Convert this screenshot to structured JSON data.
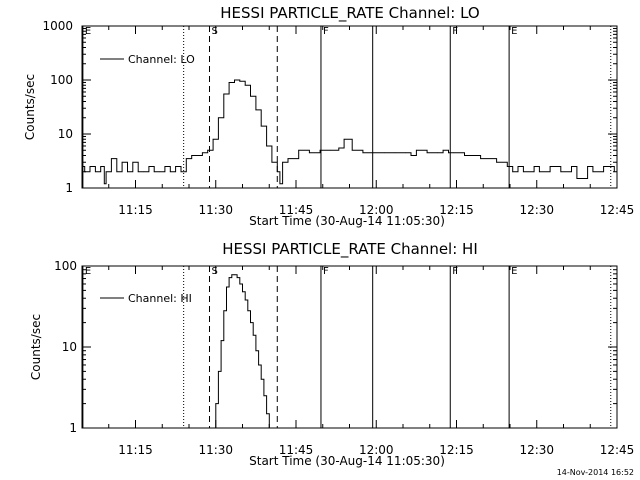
{
  "chart_data": [
    {
      "type": "line",
      "title": "HESSI PARTICLE_RATE Channel: LO",
      "xlabel": "Start Time (30-Aug-14 11:05:30)",
      "ylabel": "Counts/sec",
      "y_scale": "log",
      "ylim": [
        1,
        1000
      ],
      "xlim": [
        "11:05:30",
        "12:45:30"
      ],
      "x_ticks": [
        "11:15",
        "11:30",
        "11:45",
        "12:00",
        "12:15",
        "12:30",
        "12:45"
      ],
      "y_ticks": [
        "1",
        "10",
        "100",
        "1000"
      ],
      "legend": {
        "position": "top-left",
        "entries": [
          "Channel: LO"
        ]
      },
      "markers": [
        {
          "label": "E",
          "time": "11:05:40",
          "style": "solid"
        },
        {
          "label": "",
          "time": "11:24:30",
          "style": "dotted"
        },
        {
          "label": "S",
          "time": "11:29:20",
          "style": "dashed"
        },
        {
          "label": "",
          "time": "11:42:00",
          "style": "dashed"
        },
        {
          "label": "F",
          "time": "11:50:10",
          "style": "solid"
        },
        {
          "label": "",
          "time": "11:59:50",
          "style": "solid"
        },
        {
          "label": "F",
          "time": "12:14:20",
          "style": "solid"
        },
        {
          "label": "E",
          "time": "12:25:20",
          "style": "solid"
        },
        {
          "label": "",
          "time": "12:44:20",
          "style": "dotted"
        }
      ],
      "series": [
        {
          "name": "Channel: LO",
          "x": [
            "11:05:30",
            "11:06:00",
            "11:07:00",
            "11:08:00",
            "11:09:00",
            "11:09:40",
            "11:10:00",
            "11:11:00",
            "11:12:00",
            "11:13:00",
            "11:14:00",
            "11:15:00",
            "11:16:00",
            "11:17:00",
            "11:18:00",
            "11:19:00",
            "11:20:00",
            "11:21:00",
            "11:22:00",
            "11:23:00",
            "11:24:00",
            "11:25:00",
            "11:26:00",
            "11:27:00",
            "11:28:00",
            "11:29:00",
            "11:30:00",
            "11:31:00",
            "11:32:00",
            "11:33:00",
            "11:34:00",
            "11:35:00",
            "11:36:00",
            "11:37:00",
            "11:38:00",
            "11:39:00",
            "11:40:00",
            "11:41:00",
            "11:42:00",
            "11:42:30",
            "11:43:00",
            "11:44:00",
            "11:46:00",
            "11:48:00",
            "11:50:00",
            "11:52:00",
            "11:53:30",
            "11:54:30",
            "11:56:00",
            "11:58:00",
            "12:00:00",
            "12:02:00",
            "12:04:00",
            "12:06:00",
            "12:07:00",
            "12:08:00",
            "12:10:00",
            "12:12:00",
            "12:13:00",
            "12:14:00",
            "12:15:00",
            "12:17:00",
            "12:20:00",
            "12:23:00",
            "12:25:00",
            "12:26:00",
            "12:27:00",
            "12:28:00",
            "12:30:00",
            "12:31:00",
            "12:33:00",
            "12:35:00",
            "12:37:00",
            "12:38:00",
            "12:40:00",
            "12:41:00",
            "12:43:00",
            "12:45:00"
          ],
          "y": [
            2.5,
            2.0,
            2.5,
            2.0,
            2.5,
            1.2,
            2.0,
            3.5,
            2.0,
            3.0,
            2.0,
            3.0,
            2.0,
            2.0,
            2.5,
            2.0,
            2.0,
            2.5,
            2.0,
            2.5,
            2.0,
            3.5,
            4.0,
            4.0,
            4.5,
            5.0,
            8.0,
            20,
            55,
            90,
            100,
            95,
            80,
            50,
            28,
            14,
            6,
            3,
            2,
            1.2,
            3.0,
            3.5,
            5.0,
            4.5,
            5.0,
            5.0,
            5.5,
            8.0,
            5.0,
            4.5,
            4.5,
            4.5,
            4.5,
            4.5,
            4.0,
            5.0,
            4.5,
            4.5,
            5.0,
            4.5,
            4.5,
            4.0,
            3.5,
            3.0,
            2.5,
            2.0,
            2.5,
            2.0,
            2.5,
            2.0,
            2.5,
            2.0,
            2.5,
            1.5,
            2.5,
            2.0,
            2.5,
            2.0
          ]
        }
      ]
    },
    {
      "type": "line",
      "title": "HESSI PARTICLE_RATE Channel: HI",
      "xlabel": "Start Time (30-Aug-14 11:05:30)",
      "ylabel": "Counts/sec",
      "y_scale": "log",
      "ylim": [
        1,
        100
      ],
      "xlim": [
        "11:05:30",
        "12:45:30"
      ],
      "x_ticks": [
        "11:15",
        "11:30",
        "11:45",
        "12:00",
        "12:15",
        "12:30",
        "12:45"
      ],
      "y_ticks": [
        "1",
        "10",
        "100"
      ],
      "legend": {
        "position": "top-left",
        "entries": [
          "Channel: HI"
        ]
      },
      "markers": [
        {
          "label": "E",
          "time": "11:05:40",
          "style": "solid"
        },
        {
          "label": "",
          "time": "11:24:30",
          "style": "dotted"
        },
        {
          "label": "S",
          "time": "11:29:20",
          "style": "dashed"
        },
        {
          "label": "",
          "time": "11:42:00",
          "style": "dashed"
        },
        {
          "label": "F",
          "time": "11:50:10",
          "style": "solid"
        },
        {
          "label": "",
          "time": "11:59:50",
          "style": "solid"
        },
        {
          "label": "F",
          "time": "12:14:20",
          "style": "solid"
        },
        {
          "label": "E",
          "time": "12:25:20",
          "style": "solid"
        },
        {
          "label": "",
          "time": "12:44:20",
          "style": "dotted"
        }
      ],
      "series": [
        {
          "name": "Channel: HI",
          "x": [
            "11:30:00",
            "11:30:30",
            "11:31:00",
            "11:31:30",
            "11:32:00",
            "11:32:30",
            "11:33:00",
            "11:33:30",
            "11:34:00",
            "11:34:30",
            "11:35:00",
            "11:35:30",
            "11:36:00",
            "11:36:30",
            "11:37:00",
            "11:37:30",
            "11:38:00",
            "11:38:30",
            "11:39:00",
            "11:39:30",
            "11:40:00",
            "11:40:30"
          ],
          "y": [
            1.0,
            2.0,
            5.0,
            12,
            28,
            55,
            72,
            78,
            78,
            72,
            60,
            48,
            38,
            28,
            20,
            14,
            9,
            6,
            4,
            2.5,
            1.5,
            1.0
          ]
        }
      ]
    }
  ],
  "timestamp": "14-Nov-2014 16:52"
}
